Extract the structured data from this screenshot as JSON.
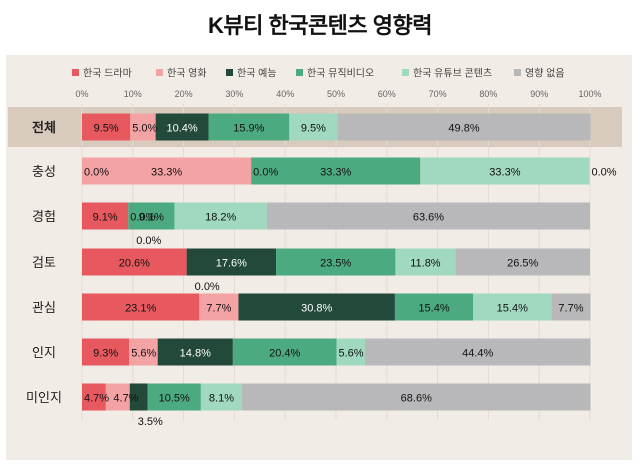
{
  "chart_data": {
    "type": "bar",
    "orientation": "horizontal",
    "stacked": true,
    "title": "K뷰티 한국콘텐츠 영향력",
    "xlim": [
      0,
      100
    ],
    "xticks": [
      "0%",
      "10%",
      "20%",
      "30%",
      "40%",
      "50%",
      "60%",
      "70%",
      "80%",
      "90%",
      "100%"
    ],
    "legend_position": "top",
    "grid": true,
    "categories": [
      "전체",
      "충성",
      "경험",
      "검토",
      "관심",
      "인지",
      "미인지"
    ],
    "highlight_category": "전체",
    "series": [
      {
        "name": "한국 드라마",
        "color": "#e8595f",
        "values": [
          9.5,
          0.0,
          9.1,
          20.6,
          23.1,
          9.3,
          4.7
        ]
      },
      {
        "name": "한국 영화",
        "color": "#f4a3a5",
        "values": [
          5.0,
          33.3,
          0.0,
          0.0,
          7.7,
          5.6,
          4.7
        ]
      },
      {
        "name": "한국 예능",
        "color": "#22493a",
        "values": [
          10.4,
          0.0,
          0.0,
          17.6,
          30.8,
          14.8,
          3.5
        ]
      },
      {
        "name": "한국 뮤직비디오",
        "color": "#4caa80",
        "values": [
          15.9,
          33.3,
          9.1,
          23.5,
          15.4,
          20.4,
          10.5
        ]
      },
      {
        "name": "한국 유튜브 콘텐츠",
        "color": "#a1d9c0",
        "values": [
          9.5,
          33.3,
          18.2,
          11.8,
          15.4,
          5.6,
          8.1
        ]
      },
      {
        "name": "영향 없음",
        "color": "#b8b8ba",
        "values": [
          49.8,
          0.0,
          63.6,
          26.5,
          7.7,
          44.4,
          68.6
        ]
      }
    ],
    "labels": [
      [
        "9.5%",
        "5.0%",
        "10.4%",
        "15.9%",
        "9.5%",
        "49.8%"
      ],
      [
        "0.0%",
        "33.3%",
        "0.0%",
        "33.3%",
        "33.3%",
        "0.0%"
      ],
      [
        "9.1%",
        "0.0%",
        "0.0%",
        "9.1%",
        "18.2%",
        "63.6%"
      ],
      [
        "20.6%",
        "0.0%",
        "17.6%",
        "23.5%",
        "11.8%",
        "26.5%"
      ],
      [
        "23.1%",
        "7.7%",
        "30.8%",
        "15.4%",
        "15.4%",
        "7.7%"
      ],
      [
        "9.3%",
        "5.6%",
        "14.8%",
        "20.4%",
        "5.6%",
        "44.4%"
      ],
      [
        "4.7%",
        "4.7%",
        "3.5%",
        "10.5%",
        "8.1%",
        "68.6%"
      ]
    ]
  }
}
